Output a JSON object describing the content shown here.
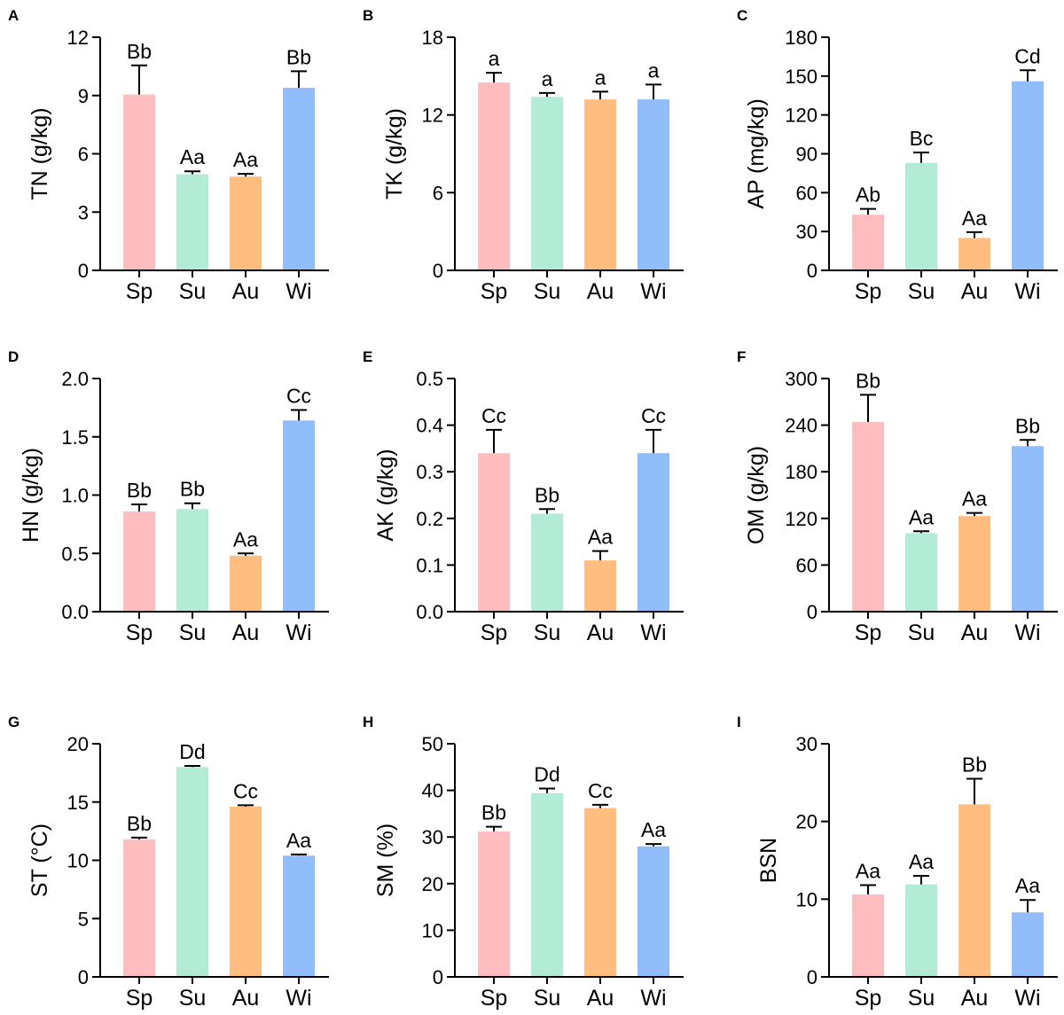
{
  "figure": {
    "colors": {
      "Sp": "#ffbdbf",
      "Su": "#b2ebd6",
      "Au": "#ffbd7f",
      "Wi": "#91bdfa",
      "axis": "#000000"
    }
  },
  "chart_data": [
    {
      "panel": "A",
      "type": "bar",
      "ylabel": "TN (g/kg)",
      "categories": [
        "Sp",
        "Su",
        "Au",
        "Wi"
      ],
      "values": [
        9.05,
        4.95,
        4.83,
        9.4
      ],
      "errors": [
        1.5,
        0.15,
        0.14,
        0.85
      ],
      "annotations": [
        "Bb",
        "Aa",
        "Aa",
        "Bb"
      ],
      "ylim": [
        0,
        12
      ],
      "yticks": [
        "0",
        "3",
        "6",
        "9",
        "12"
      ]
    },
    {
      "panel": "B",
      "type": "bar",
      "ylabel": "TK (g/kg)",
      "categories": [
        "Sp",
        "Su",
        "Au",
        "Wi"
      ],
      "values": [
        14.5,
        13.4,
        13.2,
        13.2
      ],
      "errors": [
        0.75,
        0.3,
        0.6,
        1.15
      ],
      "annotations": [
        "a",
        "a",
        "a",
        "a"
      ],
      "ylim": [
        0,
        18
      ],
      "yticks": [
        "0",
        "6",
        "12",
        "18"
      ]
    },
    {
      "panel": "C",
      "type": "bar",
      "ylabel": "AP (mg/kg)",
      "categories": [
        "Sp",
        "Su",
        "Au",
        "Wi"
      ],
      "values": [
        43,
        83,
        25,
        146
      ],
      "errors": [
        4.5,
        8,
        4.5,
        8.5
      ],
      "annotations": [
        "Ab",
        "Bc",
        "Aa",
        "Cd"
      ],
      "ylim": [
        0,
        180
      ],
      "yticks": [
        "0",
        "30",
        "60",
        "90",
        "120",
        "150",
        "180"
      ]
    },
    {
      "panel": "D",
      "type": "bar",
      "ylabel": "HN (g/kg)",
      "categories": [
        "Sp",
        "Su",
        "Au",
        "Wi"
      ],
      "values": [
        0.86,
        0.88,
        0.48,
        1.64
      ],
      "errors": [
        0.06,
        0.05,
        0.02,
        0.09
      ],
      "annotations": [
        "Bb",
        "Bb",
        "Aa",
        "Cc"
      ],
      "ylim": [
        0,
        2.0
      ],
      "yticks": [
        "0.0",
        "0.5",
        "1.0",
        "1.5",
        "2.0"
      ]
    },
    {
      "panel": "E",
      "type": "bar",
      "ylabel": "AK (g/kg)",
      "categories": [
        "Sp",
        "Su",
        "Au",
        "Wi"
      ],
      "values": [
        0.34,
        0.21,
        0.11,
        0.34
      ],
      "errors": [
        0.05,
        0.01,
        0.02,
        0.05
      ],
      "annotations": [
        "Cc",
        "Bb",
        "Aa",
        "Cc"
      ],
      "ylim": [
        0,
        0.5
      ],
      "yticks": [
        "0.0",
        "0.1",
        "0.2",
        "0.3",
        "0.4",
        "0.5"
      ]
    },
    {
      "panel": "F",
      "type": "bar",
      "ylabel": "OM (g/kg)",
      "categories": [
        "Sp",
        "Su",
        "Au",
        "Wi"
      ],
      "values": [
        244,
        101,
        123,
        213
      ],
      "errors": [
        35,
        2.5,
        4,
        8
      ],
      "annotations": [
        "Bb",
        "Aa",
        "Aa",
        "Bb"
      ],
      "ylim": [
        0,
        300
      ],
      "yticks": [
        "0",
        "60",
        "120",
        "180",
        "240",
        "300"
      ]
    },
    {
      "panel": "G",
      "type": "bar",
      "ylabel": "ST (°C)",
      "categories": [
        "Sp",
        "Su",
        "Au",
        "Wi"
      ],
      "values": [
        11.8,
        18.0,
        14.6,
        10.4
      ],
      "errors": [
        0.15,
        0.1,
        0.12,
        0.1
      ],
      "annotations": [
        "Bb",
        "Dd",
        "Cc",
        "Aa"
      ],
      "ylim": [
        0,
        20
      ],
      "yticks": [
        "0",
        "5",
        "10",
        "15",
        "20"
      ]
    },
    {
      "panel": "H",
      "type": "bar",
      "ylabel": "SM (%)",
      "categories": [
        "Sp",
        "Su",
        "Au",
        "Wi"
      ],
      "values": [
        31.2,
        39.4,
        36.2,
        28.0
      ],
      "errors": [
        1.0,
        1.0,
        0.7,
        0.5
      ],
      "annotations": [
        "Bb",
        "Dd",
        "Cc",
        "Aa"
      ],
      "ylim": [
        0,
        50
      ],
      "yticks": [
        "0",
        "10",
        "20",
        "30",
        "40",
        "50"
      ]
    },
    {
      "panel": "I",
      "type": "bar",
      "ylabel": "BSN",
      "categories": [
        "Sp",
        "Su",
        "Au",
        "Wi"
      ],
      "values": [
        10.6,
        11.9,
        22.2,
        8.3
      ],
      "errors": [
        1.2,
        1.1,
        3.3,
        1.6
      ],
      "annotations": [
        "Aa",
        "Aa",
        "Bb",
        "Aa"
      ],
      "ylim": [
        0,
        30
      ],
      "yticks": [
        "0",
        "10",
        "20",
        "30"
      ]
    }
  ]
}
